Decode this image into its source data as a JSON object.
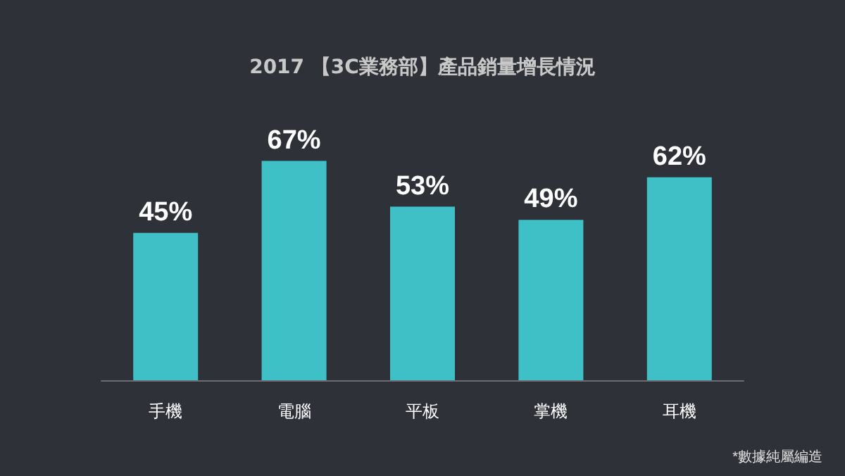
{
  "chart_data": {
    "type": "bar",
    "title": "2017 【3C業務部】產品銷量增長情況",
    "categories": [
      "手機",
      "電腦",
      "平板",
      "掌機",
      "耳機"
    ],
    "values": [
      45,
      67,
      53,
      49,
      62
    ],
    "value_labels": [
      "45%",
      "67%",
      "53%",
      "49%",
      "62%"
    ],
    "color": "#3ec0c6",
    "grid": false,
    "annotations": [
      "*數據純屬編造"
    ]
  }
}
